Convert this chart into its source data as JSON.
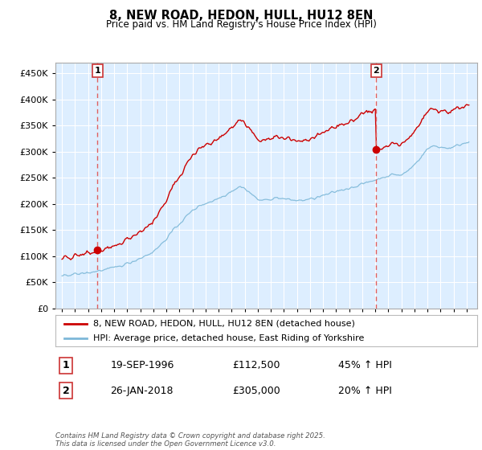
{
  "title": "8, NEW ROAD, HEDON, HULL, HU12 8EN",
  "subtitle": "Price paid vs. HM Land Registry's House Price Index (HPI)",
  "legend_line1": "8, NEW ROAD, HEDON, HULL, HU12 8EN (detached house)",
  "legend_line2": "HPI: Average price, detached house, East Riding of Yorkshire",
  "sale1_label": "1",
  "sale1_date": "19-SEP-1996",
  "sale1_price": "£112,500",
  "sale1_pct": "45% ↑ HPI",
  "sale1_year": 1996.72,
  "sale1_value": 112500,
  "sale2_label": "2",
  "sale2_date": "26-JAN-2018",
  "sale2_price": "£305,000",
  "sale2_pct": "20% ↑ HPI",
  "sale2_year": 2018.07,
  "sale2_value": 305000,
  "hpi_color": "#7db8d8",
  "price_color": "#cc0000",
  "dashed_color": "#e06060",
  "bg_color": "#ddeeff",
  "ylim_min": 0,
  "ylim_max": 470000,
  "xlim_min": 1993.5,
  "xlim_max": 2025.8,
  "footer": "Contains HM Land Registry data © Crown copyright and database right 2025.\nThis data is licensed under the Open Government Licence v3.0."
}
